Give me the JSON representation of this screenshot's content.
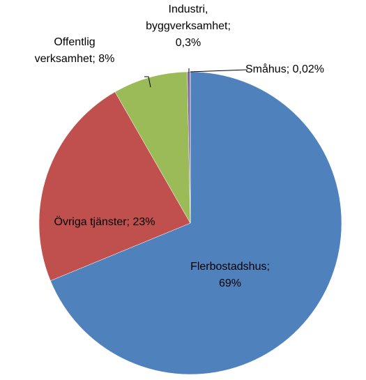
{
  "chart_data": {
    "type": "pie",
    "categories": [
      "Flerbostadshus;",
      "Övriga tjänster;",
      "Offentlig verksamhet;",
      "Industri, byggverksamhet;",
      "Småhus;"
    ],
    "values": [
      69,
      23,
      8,
      0.3,
      0.02
    ],
    "value_labels": [
      "69%",
      "23%",
      "8%",
      "0,3%",
      "0,02%"
    ],
    "colors": [
      "#4f81bd",
      "#c0504d",
      "#9bbb59",
      "#8064a2",
      "#4bacc6"
    ]
  }
}
